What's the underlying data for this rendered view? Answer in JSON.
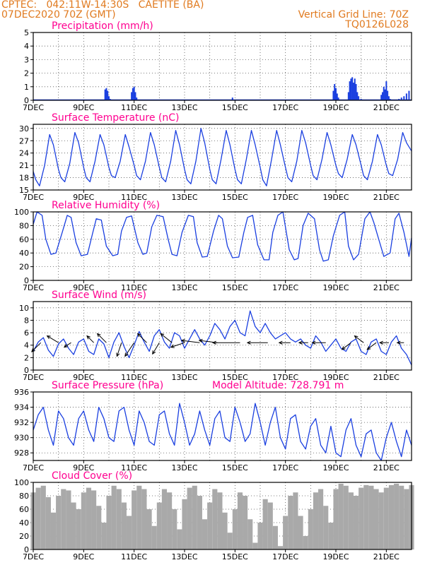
{
  "header": {
    "station": "CPTEC:   042:11W-14:30S   CAETITE (BA)",
    "run": "07DEC2020 70Z (GMT)",
    "grid_note": "Vertical Grid Line: 70Z",
    "code": "TQ0126L028"
  },
  "colors": {
    "header": "#e07a1f",
    "title": "#ff0090",
    "line": "#1a3fe0",
    "cloud": "#a9a9a9",
    "arrow": "#000000"
  },
  "x_ticks": [
    "7DEC",
    "9DEC",
    "11DEC",
    "13DEC",
    "15DEC",
    "17DEC",
    "19DEC",
    "21DEC"
  ],
  "chart_data": [
    {
      "type": "bar",
      "title": "Precipitation (mm/h)",
      "ylim": [
        0,
        5
      ],
      "yticks": [
        "0",
        "1",
        "2",
        "3",
        "4",
        "5"
      ],
      "x_unit": "day",
      "x": [
        9.85,
        9.9,
        9.95,
        10.0,
        10.05,
        10.9,
        10.95,
        11.0,
        11.05,
        11.1,
        14.9,
        18.9,
        18.95,
        19.0,
        19.05,
        19.1,
        19.5,
        19.55,
        19.6,
        19.65,
        19.7,
        19.75,
        19.8,
        19.85,
        19.9,
        20.0,
        20.8,
        20.85,
        20.9,
        20.95,
        21.0,
        21.05,
        21.1,
        21.15,
        21.5,
        21.6,
        21.7,
        21.8,
        21.9
      ],
      "values": [
        0.8,
        0.9,
        0.7,
        0.3,
        0.1,
        0.6,
        0.9,
        1.0,
        0.6,
        0.2,
        0.2,
        0.7,
        1.2,
        0.9,
        0.5,
        0.2,
        0.6,
        1.4,
        1.6,
        1.7,
        1.3,
        1.6,
        1.2,
        0.6,
        0.3,
        0.1,
        0.4,
        0.6,
        1.0,
        0.8,
        1.4,
        0.7,
        0.3,
        0.1,
        0.1,
        0.2,
        0.3,
        0.5,
        0.7
      ]
    },
    {
      "type": "line",
      "title": "Surface Temperature (nC)",
      "ylim": [
        15,
        31
      ],
      "yticks": [
        "15",
        "18",
        "21",
        "24",
        "27",
        "30"
      ],
      "x_unit": "day",
      "x": [
        7.0,
        7.1,
        7.25,
        7.45,
        7.65,
        7.8,
        8.0,
        8.1,
        8.25,
        8.45,
        8.65,
        8.8,
        9.0,
        9.1,
        9.25,
        9.45,
        9.65,
        9.8,
        10.0,
        10.1,
        10.25,
        10.45,
        10.65,
        10.8,
        11.0,
        11.1,
        11.25,
        11.45,
        11.65,
        11.8,
        12.0,
        12.1,
        12.25,
        12.45,
        12.65,
        12.8,
        13.0,
        13.1,
        13.25,
        13.45,
        13.65,
        13.8,
        14.0,
        14.1,
        14.25,
        14.45,
        14.65,
        14.8,
        15.0,
        15.1,
        15.25,
        15.45,
        15.65,
        15.8,
        16.0,
        16.1,
        16.25,
        16.45,
        16.65,
        16.8,
        17.0,
        17.1,
        17.25,
        17.45,
        17.65,
        17.8,
        18.0,
        18.1,
        18.25,
        18.45,
        18.65,
        18.8,
        19.0,
        19.1,
        19.25,
        19.45,
        19.65,
        19.8,
        20.0,
        20.1,
        20.25,
        20.45,
        20.65,
        20.8,
        21.0,
        21.1,
        21.25,
        21.45,
        21.65,
        21.8,
        22.0
      ],
      "values": [
        19.5,
        17.5,
        16.0,
        21.0,
        28.5,
        26.0,
        20.0,
        18.0,
        17.0,
        21.5,
        29.0,
        26.5,
        20.5,
        18.0,
        17.0,
        22.0,
        28.5,
        26.0,
        20.5,
        18.5,
        18.0,
        22.0,
        28.5,
        25.5,
        21.0,
        18.5,
        17.5,
        22.0,
        29.0,
        26.0,
        20.5,
        18.0,
        17.0,
        22.0,
        29.5,
        26.0,
        20.0,
        17.5,
        16.5,
        22.0,
        30.0,
        26.5,
        20.0,
        17.5,
        16.5,
        22.5,
        29.5,
        26.0,
        20.0,
        17.5,
        16.5,
        22.5,
        29.5,
        26.0,
        20.5,
        17.5,
        16.0,
        22.5,
        29.5,
        26.0,
        20.5,
        18.0,
        17.0,
        22.0,
        29.5,
        26.5,
        21.0,
        18.5,
        17.5,
        22.5,
        29.0,
        26.0,
        21.0,
        19.0,
        18.0,
        22.5,
        28.5,
        26.0,
        21.0,
        18.5,
        17.5,
        22.0,
        28.5,
        26.0,
        21.0,
        19.0,
        18.5,
        22.5,
        29.0,
        26.5,
        24.5
      ]
    },
    {
      "type": "line",
      "title": "Relative Humidity (%)",
      "ylim": [
        0,
        100
      ],
      "yticks": [
        "0",
        "20",
        "40",
        "60",
        "80",
        "100"
      ],
      "x_unit": "day",
      "x": [
        7.0,
        7.15,
        7.35,
        7.5,
        7.7,
        7.9,
        8.15,
        8.35,
        8.5,
        8.7,
        8.9,
        9.15,
        9.35,
        9.5,
        9.7,
        9.9,
        10.15,
        10.35,
        10.5,
        10.7,
        10.9,
        11.15,
        11.35,
        11.5,
        11.7,
        11.9,
        12.15,
        12.35,
        12.5,
        12.7,
        12.9,
        13.15,
        13.35,
        13.5,
        13.7,
        13.9,
        14.15,
        14.35,
        14.5,
        14.7,
        14.9,
        15.15,
        15.35,
        15.5,
        15.7,
        15.9,
        16.15,
        16.35,
        16.5,
        16.7,
        16.9,
        17.15,
        17.35,
        17.5,
        17.7,
        17.9,
        18.15,
        18.35,
        18.5,
        18.7,
        18.9,
        19.15,
        19.35,
        19.5,
        19.7,
        19.9,
        20.15,
        20.35,
        20.5,
        20.7,
        20.9,
        21.15,
        21.35,
        21.5,
        21.7,
        21.9,
        22.0
      ],
      "values": [
        82,
        100,
        95,
        60,
        38,
        40,
        70,
        95,
        92,
        55,
        36,
        38,
        68,
        90,
        88,
        50,
        36,
        38,
        72,
        92,
        94,
        55,
        38,
        40,
        78,
        95,
        93,
        60,
        38,
        36,
        70,
        95,
        93,
        55,
        34,
        35,
        72,
        95,
        90,
        50,
        33,
        34,
        70,
        92,
        95,
        52,
        30,
        30,
        70,
        95,
        100,
        45,
        30,
        32,
        80,
        98,
        90,
        45,
        28,
        30,
        65,
        95,
        100,
        50,
        30,
        38,
        90,
        100,
        85,
        60,
        35,
        40,
        90,
        98,
        70,
        35,
        62
      ]
    },
    {
      "type": "line",
      "title": "Surface Wind (m/s)",
      "ylim": [
        0,
        11
      ],
      "yticks": [
        "0",
        "2",
        "4",
        "6",
        "8",
        "10"
      ],
      "x_unit": "day",
      "x": [
        7.0,
        7.2,
        7.4,
        7.6,
        7.8,
        8.0,
        8.2,
        8.4,
        8.6,
        8.8,
        9.0,
        9.2,
        9.4,
        9.6,
        9.8,
        10.0,
        10.2,
        10.4,
        10.6,
        10.8,
        11.0,
        11.2,
        11.4,
        11.6,
        11.8,
        12.0,
        12.2,
        12.4,
        12.6,
        12.8,
        13.0,
        13.2,
        13.4,
        13.6,
        13.8,
        14.0,
        14.2,
        14.4,
        14.6,
        14.8,
        15.0,
        15.2,
        15.4,
        15.6,
        15.8,
        16.0,
        16.2,
        16.4,
        16.6,
        16.8,
        17.0,
        17.2,
        17.4,
        17.6,
        17.8,
        18.0,
        18.2,
        18.4,
        18.6,
        18.8,
        19.0,
        19.2,
        19.4,
        19.6,
        19.8,
        20.0,
        20.2,
        20.4,
        20.6,
        20.8,
        21.0,
        21.2,
        21.4,
        21.6,
        21.8,
        22.0
      ],
      "values": [
        3.0,
        4.5,
        5.2,
        3.2,
        2.2,
        4.2,
        5.0,
        3.5,
        2.5,
        4.5,
        5.0,
        3.0,
        2.5,
        5.0,
        4.2,
        2.0,
        4.5,
        6.0,
        3.8,
        2.0,
        4.0,
        6.2,
        4.5,
        3.0,
        5.5,
        6.5,
        4.5,
        3.5,
        6.0,
        5.5,
        3.5,
        5.0,
        6.5,
        5.0,
        4.0,
        5.5,
        7.5,
        6.5,
        5.0,
        7.0,
        8.0,
        6.0,
        5.5,
        9.5,
        7.0,
        6.0,
        7.5,
        6.0,
        5.0,
        5.5,
        6.0,
        5.0,
        4.5,
        5.0,
        4.0,
        3.5,
        5.5,
        4.5,
        3.0,
        4.0,
        5.0,
        3.5,
        3.0,
        4.5,
        5.0,
        3.0,
        2.5,
        4.5,
        5.0,
        3.0,
        2.5,
        4.5,
        5.5,
        3.5,
        2.5,
        0.8
      ],
      "arrows": [
        {
          "x": 7.3,
          "u": -4,
          "v": -4
        },
        {
          "x": 8.0,
          "u": -5,
          "v": 3
        },
        {
          "x": 8.5,
          "u": -3,
          "v": -2
        },
        {
          "x": 9.4,
          "u": -3,
          "v": 3
        },
        {
          "x": 9.9,
          "u": -4,
          "v": 4
        },
        {
          "x": 10.5,
          "u": -2,
          "v": -6
        },
        {
          "x": 11.0,
          "u": -4,
          "v": -6
        },
        {
          "x": 11.5,
          "u": -4,
          "v": 4
        },
        {
          "x": 12.0,
          "u": -3,
          "v": -5
        },
        {
          "x": 12.5,
          "u": -5,
          "v": 4
        },
        {
          "x": 13.0,
          "u": -6,
          "v": -2
        },
        {
          "x": 13.6,
          "u": -8,
          "v": 1
        },
        {
          "x": 14.3,
          "u": -8,
          "v": 1
        },
        {
          "x": 15.2,
          "u": -12,
          "v": 0
        },
        {
          "x": 16.3,
          "u": -9,
          "v": 0
        },
        {
          "x": 17.2,
          "u": -5,
          "v": 0
        },
        {
          "x": 17.9,
          "u": -4,
          "v": 0
        },
        {
          "x": 18.6,
          "u": -6,
          "v": 0
        },
        {
          "x": 19.6,
          "u": -4,
          "v": -3
        },
        {
          "x": 20.1,
          "u": -4,
          "v": 3
        },
        {
          "x": 20.6,
          "u": -4,
          "v": -3
        },
        {
          "x": 21.1,
          "u": -4,
          "v": 0
        },
        {
          "x": 21.7,
          "u": -3,
          "v": 0
        }
      ]
    },
    {
      "type": "line",
      "title": "Surface Pressure (hPa)",
      "annotation": "Model Altitude: 728.791  m",
      "ylim": [
        927,
        936
      ],
      "yticks": [
        "928",
        "930",
        "932",
        "934",
        "936"
      ],
      "x_unit": "day",
      "x": [
        7.0,
        7.2,
        7.4,
        7.6,
        7.8,
        8.0,
        8.2,
        8.4,
        8.6,
        8.8,
        9.0,
        9.2,
        9.4,
        9.6,
        9.8,
        10.0,
        10.2,
        10.4,
        10.6,
        10.8,
        11.0,
        11.2,
        11.4,
        11.6,
        11.8,
        12.0,
        12.2,
        12.4,
        12.6,
        12.8,
        13.0,
        13.2,
        13.4,
        13.6,
        13.8,
        14.0,
        14.2,
        14.4,
        14.6,
        14.8,
        15.0,
        15.2,
        15.4,
        15.6,
        15.8,
        16.0,
        16.2,
        16.4,
        16.6,
        16.8,
        17.0,
        17.2,
        17.4,
        17.6,
        17.8,
        18.0,
        18.2,
        18.4,
        18.6,
        18.8,
        19.0,
        19.2,
        19.4,
        19.6,
        19.8,
        20.0,
        20.2,
        20.4,
        20.6,
        20.8,
        21.0,
        21.2,
        21.4,
        21.6,
        21.8,
        22.0
      ],
      "values": [
        931.0,
        933.0,
        934.0,
        931.0,
        929.0,
        933.5,
        932.5,
        930.0,
        929.0,
        932.5,
        933.5,
        931.0,
        929.5,
        934.0,
        932.5,
        930.0,
        929.5,
        933.5,
        934.0,
        931.0,
        929.0,
        933.5,
        932.0,
        929.5,
        929.0,
        933.0,
        933.5,
        930.5,
        929.0,
        934.5,
        932.0,
        929.0,
        930.5,
        933.5,
        931.0,
        929.0,
        932.5,
        933.5,
        930.0,
        929.5,
        934.0,
        932.0,
        929.5,
        930.5,
        934.5,
        932.0,
        929.0,
        932.0,
        934.0,
        930.0,
        928.5,
        932.5,
        933.0,
        929.5,
        928.5,
        931.5,
        932.5,
        929.0,
        928.0,
        931.5,
        928.0,
        927.5,
        931.0,
        932.5,
        929.0,
        927.5,
        930.5,
        931.0,
        928.0,
        927.0,
        930.0,
        932.0,
        929.5,
        927.5,
        931.0,
        929.0
      ]
    },
    {
      "type": "area",
      "title": "Cloud Cover (%)",
      "ylim": [
        0,
        100
      ],
      "yticks": [
        "0",
        "20",
        "40",
        "60",
        "80",
        "100"
      ],
      "x_unit": "day",
      "x": [
        7.0,
        7.2,
        7.4,
        7.6,
        7.8,
        8.0,
        8.2,
        8.4,
        8.6,
        8.8,
        9.0,
        9.2,
        9.4,
        9.6,
        9.8,
        10.0,
        10.2,
        10.4,
        10.6,
        10.8,
        11.0,
        11.2,
        11.4,
        11.6,
        11.8,
        12.0,
        12.2,
        12.4,
        12.6,
        12.8,
        13.0,
        13.2,
        13.4,
        13.6,
        13.8,
        14.0,
        14.2,
        14.4,
        14.6,
        14.8,
        15.0,
        15.2,
        15.4,
        15.6,
        15.8,
        16.0,
        16.2,
        16.4,
        16.6,
        16.8,
        17.0,
        17.2,
        17.4,
        17.6,
        17.8,
        18.0,
        18.2,
        18.4,
        18.6,
        18.8,
        19.0,
        19.2,
        19.4,
        19.6,
        19.8,
        20.0,
        20.2,
        20.4,
        20.6,
        20.8,
        21.0,
        21.2,
        21.4,
        21.6,
        21.8,
        22.0
      ],
      "values": [
        85,
        92,
        95,
        78,
        55,
        80,
        90,
        88,
        70,
        60,
        85,
        92,
        88,
        65,
        40,
        80,
        95,
        90,
        70,
        50,
        88,
        95,
        90,
        60,
        35,
        70,
        90,
        85,
        60,
        30,
        75,
        92,
        95,
        80,
        45,
        70,
        90,
        85,
        55,
        25,
        60,
        85,
        80,
        45,
        10,
        40,
        75,
        70,
        35,
        5,
        50,
        80,
        85,
        50,
        20,
        60,
        85,
        90,
        65,
        40,
        90,
        98,
        95,
        85,
        80,
        92,
        96,
        95,
        90,
        85,
        92,
        96,
        98,
        95,
        90,
        96
      ]
    }
  ]
}
